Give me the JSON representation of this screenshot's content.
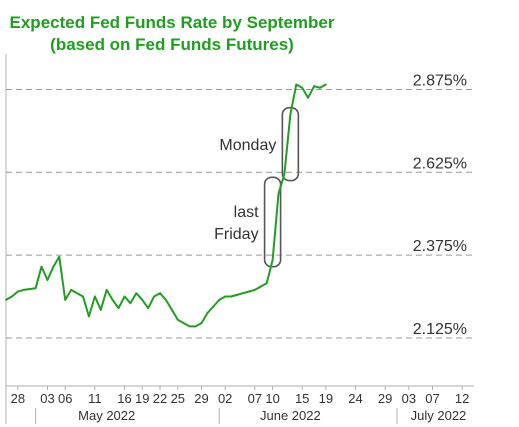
{
  "chart_data": {
    "type": "line",
    "title": "Expected Fed Funds Rate by September",
    "subtitle": "(based on Fed Funds Futures)",
    "colors": {
      "line": "#1ea01e",
      "title": "#1ea01e",
      "grid": "#9a9a9a",
      "annotation_box": "#555555",
      "text": "#333333"
    },
    "y_unit": "percent",
    "ylim": [
      1.98,
      2.97
    ],
    "xlim": [
      "2022-04-26",
      "2022-07-14"
    ],
    "y_gridlines": [
      {
        "value": 2.125,
        "label": "2.125%"
      },
      {
        "value": 2.375,
        "label": "2.375%"
      },
      {
        "value": 2.625,
        "label": "2.625%"
      },
      {
        "value": 2.875,
        "label": "2.875%"
      }
    ],
    "x_ticks": [
      {
        "date": "2022-04-28",
        "label": "28"
      },
      {
        "date": "2022-05-03",
        "label": "03"
      },
      {
        "date": "2022-05-06",
        "label": "06"
      },
      {
        "date": "2022-05-11",
        "label": "11"
      },
      {
        "date": "2022-05-16",
        "label": "16"
      },
      {
        "date": "2022-05-19",
        "label": "19"
      },
      {
        "date": "2022-05-22",
        "label": "22"
      },
      {
        "date": "2022-05-25",
        "label": "25"
      },
      {
        "date": "2022-05-29",
        "label": "29"
      },
      {
        "date": "2022-06-02",
        "label": "02"
      },
      {
        "date": "2022-06-07",
        "label": "07"
      },
      {
        "date": "2022-06-10",
        "label": "10"
      },
      {
        "date": "2022-06-15",
        "label": "15"
      },
      {
        "date": "2022-06-19",
        "label": "19"
      },
      {
        "date": "2022-06-24",
        "label": "24"
      },
      {
        "date": "2022-06-29",
        "label": "29"
      },
      {
        "date": "2022-07-03",
        "label": "03"
      },
      {
        "date": "2022-07-07",
        "label": "07"
      },
      {
        "date": "2022-07-12",
        "label": "12"
      }
    ],
    "x_month_labels": [
      {
        "label": "May 2022",
        "date": "2022-05-13"
      },
      {
        "label": "June 2022",
        "date": "2022-06-13"
      },
      {
        "label": "July 2022",
        "date": "2022-07-08"
      }
    ],
    "x_month_dividers": [
      "2022-05-01",
      "2022-06-01",
      "2022-07-01"
    ],
    "annotations": [
      {
        "text": "Monday",
        "date": "2022-06-13",
        "y_from": 2.6,
        "y_to": 2.82
      },
      {
        "text": [
          "last",
          "Friday"
        ],
        "date": "2022-06-10",
        "y_from": 2.34,
        "y_to": 2.61
      }
    ],
    "series": [
      {
        "points": [
          [
            "2022-04-26",
            2.24
          ],
          [
            "2022-04-27",
            2.25
          ],
          [
            "2022-04-28",
            2.265
          ],
          [
            "2022-04-29",
            2.27
          ],
          [
            "2022-05-01",
            2.275
          ],
          [
            "2022-05-02",
            2.34
          ],
          [
            "2022-05-03",
            2.3
          ],
          [
            "2022-05-04",
            2.34
          ],
          [
            "2022-05-05",
            2.37
          ],
          [
            "2022-05-06",
            2.24
          ],
          [
            "2022-05-07",
            2.27
          ],
          [
            "2022-05-08",
            2.26
          ],
          [
            "2022-05-09",
            2.25
          ],
          [
            "2022-05-10",
            2.19
          ],
          [
            "2022-05-11",
            2.25
          ],
          [
            "2022-05-12",
            2.21
          ],
          [
            "2022-05-13",
            2.27
          ],
          [
            "2022-05-14",
            2.24
          ],
          [
            "2022-05-15",
            2.215
          ],
          [
            "2022-05-16",
            2.25
          ],
          [
            "2022-05-17",
            2.23
          ],
          [
            "2022-05-18",
            2.26
          ],
          [
            "2022-05-19",
            2.24
          ],
          [
            "2022-05-20",
            2.215
          ],
          [
            "2022-05-21",
            2.25
          ],
          [
            "2022-05-22",
            2.26
          ],
          [
            "2022-05-23",
            2.24
          ],
          [
            "2022-05-24",
            2.21
          ],
          [
            "2022-05-25",
            2.18
          ],
          [
            "2022-05-26",
            2.17
          ],
          [
            "2022-05-27",
            2.16
          ],
          [
            "2022-05-28",
            2.16
          ],
          [
            "2022-05-29",
            2.17
          ],
          [
            "2022-05-30",
            2.2
          ],
          [
            "2022-05-31",
            2.22
          ],
          [
            "2022-06-01",
            2.24
          ],
          [
            "2022-06-02",
            2.25
          ],
          [
            "2022-06-03",
            2.25
          ],
          [
            "2022-06-04",
            2.255
          ],
          [
            "2022-06-05",
            2.26
          ],
          [
            "2022-06-06",
            2.265
          ],
          [
            "2022-06-07",
            2.27
          ],
          [
            "2022-06-08",
            2.28
          ],
          [
            "2022-06-09",
            2.29
          ],
          [
            "2022-06-10",
            2.36
          ],
          [
            "2022-06-11",
            2.56
          ],
          [
            "2022-06-12",
            2.62
          ],
          [
            "2022-06-13",
            2.8
          ],
          [
            "2022-06-14",
            2.89
          ],
          [
            "2022-06-15",
            2.88
          ],
          [
            "2022-06-16",
            2.85
          ],
          [
            "2022-06-17",
            2.885
          ],
          [
            "2022-06-18",
            2.88
          ],
          [
            "2022-06-19",
            2.89
          ]
        ]
      }
    ]
  }
}
